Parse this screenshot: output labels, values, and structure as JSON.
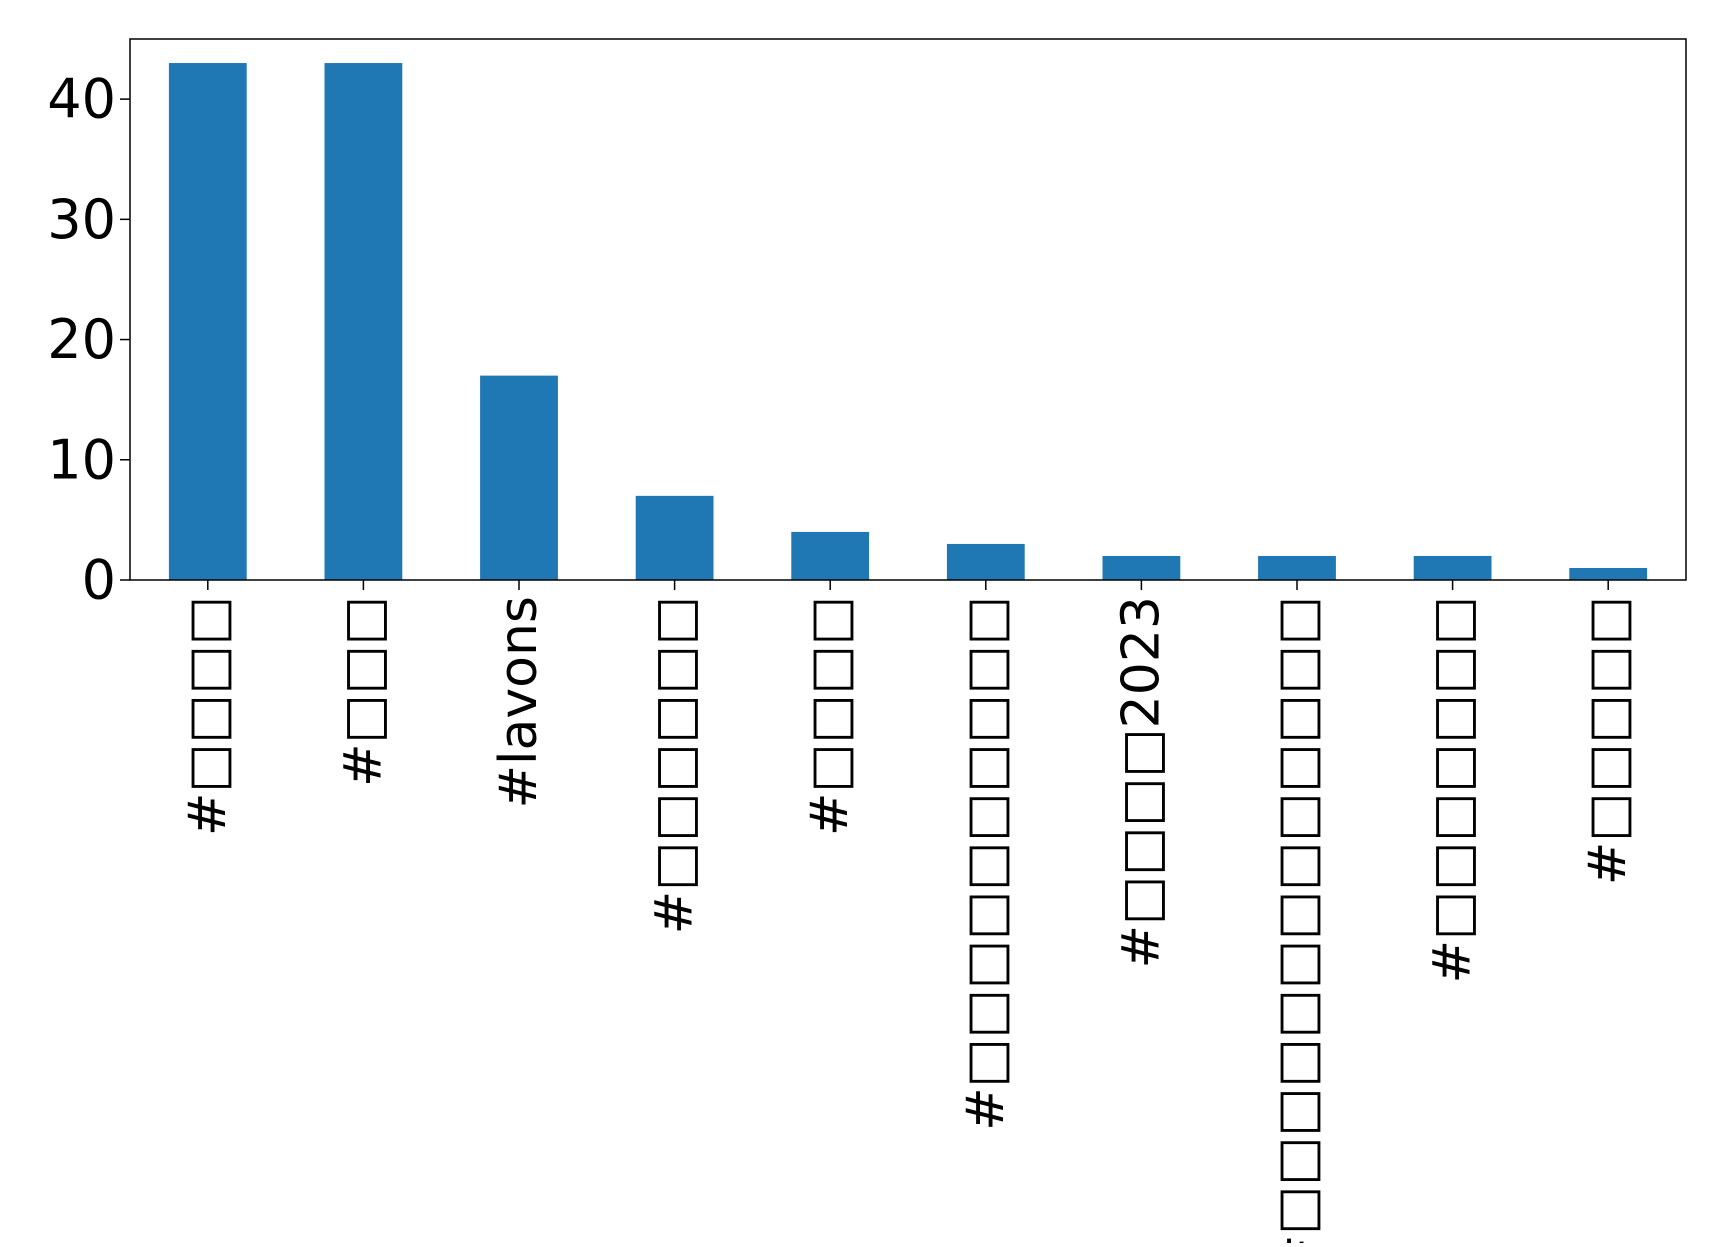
{
  "chart_data": {
    "type": "bar",
    "title": "",
    "xlabel": "",
    "ylabel": "",
    "categories": [
      "#□□□□",
      "#□□□",
      "#lavons",
      "#□□□□□□",
      "#□□□□",
      "#□□□□□□□□□□",
      "#□□□□2023",
      "#□□□□□□□□□□□□□",
      "#□□□□□□□",
      "#□□□□□"
    ],
    "values": [
      43,
      43,
      17,
      7,
      4,
      3,
      2,
      2,
      2,
      1
    ],
    "ylim": [
      0,
      45
    ],
    "yticks": [
      0,
      10,
      20,
      30,
      40
    ],
    "ytick_labels": [
      "0",
      "10",
      "20",
      "30",
      "40"
    ],
    "bar_color": "#1f77b4",
    "grid": false,
    "legend": "none"
  }
}
